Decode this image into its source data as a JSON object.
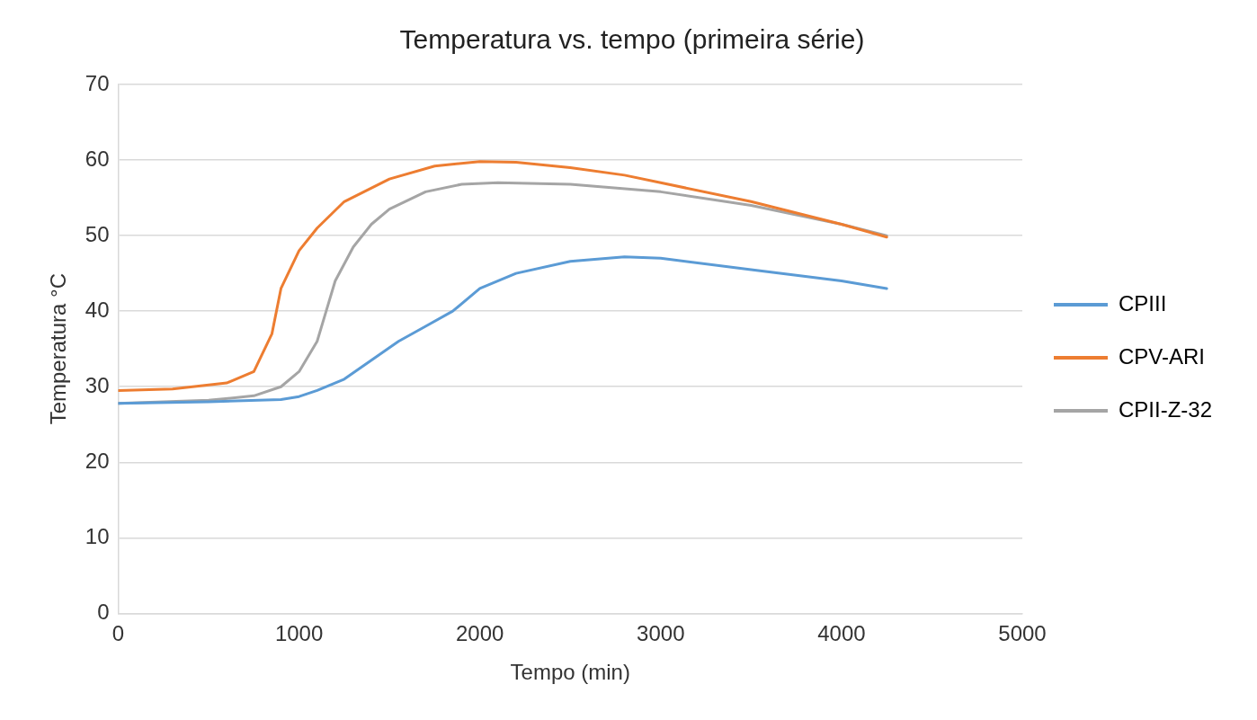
{
  "chart_data": {
    "type": "line",
    "title": "Temperatura vs. tempo (primeira série)",
    "xlabel": "Tempo (min)",
    "ylabel": "Temperatura °C",
    "xlim": [
      0,
      5000
    ],
    "xticks": [
      0,
      1000,
      2000,
      3000,
      4000,
      5000
    ],
    "ylim": [
      0,
      70
    ],
    "yticks": [
      0,
      10,
      20,
      30,
      40,
      50,
      60,
      70
    ],
    "grid": "y",
    "legend": "right",
    "marker": "none",
    "line_style": "solid",
    "series": [
      {
        "name": "CPIII",
        "color": "#5b9bd5",
        "x": [
          0,
          500,
          900,
          1000,
          1100,
          1250,
          1400,
          1550,
          1700,
          1850,
          2000,
          2200,
          2500,
          2800,
          3000,
          3500,
          4000,
          4250
        ],
        "values": [
          27.8,
          28,
          28.3,
          28.7,
          29.5,
          31,
          33.5,
          36,
          38,
          40,
          43,
          45,
          46.6,
          47.2,
          47,
          45.5,
          44,
          43
        ]
      },
      {
        "name": "CPV-ARI",
        "color": "#ed7d31",
        "x": [
          0,
          300,
          600,
          750,
          850,
          900,
          1000,
          1100,
          1250,
          1500,
          1750,
          2000,
          2200,
          2500,
          2800,
          3000,
          3500,
          4000,
          4250
        ],
        "values": [
          29.5,
          29.7,
          30.5,
          32,
          37,
          43,
          48,
          51,
          54.5,
          57.5,
          59.2,
          59.8,
          59.7,
          59,
          58,
          57,
          54.5,
          51.5,
          49.8
        ]
      },
      {
        "name": "CPII-Z-32",
        "color": "#a5a5a5",
        "x": [
          0,
          500,
          750,
          900,
          1000,
          1100,
          1150,
          1200,
          1300,
          1400,
          1500,
          1700,
          1900,
          2100,
          2500,
          3000,
          3500,
          4000,
          4250
        ],
        "values": [
          27.8,
          28.2,
          28.8,
          30,
          32,
          36,
          40,
          44,
          48.5,
          51.5,
          53.5,
          55.8,
          56.8,
          57,
          56.8,
          55.8,
          54,
          51.5,
          50
        ]
      }
    ]
  }
}
